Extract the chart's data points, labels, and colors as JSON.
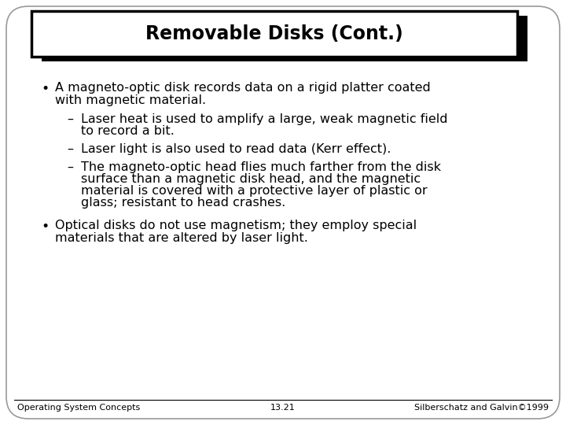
{
  "title": "Removable Disks (Cont.)",
  "background_color": "#ffffff",
  "title_fontsize": 17,
  "body_fontsize": 11.5,
  "footer_fontsize": 8,
  "bullet1_line1": "A magneto-optic disk records data on a rigid platter coated",
  "bullet1_line2": "with magnetic material.",
  "sub1_line1": "Laser heat is used to amplify a large, weak magnetic field",
  "sub1_line2": "to record a bit.",
  "sub2_line1": "Laser light is also used to read data (Kerr effect).",
  "sub3_line1": "The magneto-optic head flies much farther from the disk",
  "sub3_line2": "surface than a magnetic disk head, and the magnetic",
  "sub3_line3": "material is covered with a protective layer of plastic or",
  "sub3_line4": "glass; resistant to head crashes.",
  "bullet2_line1": "Optical disks do not use magnetism; they employ special",
  "bullet2_line2": "materials that are altered by laser light.",
  "footer_left": "Operating System Concepts",
  "footer_center": "13.21",
  "footer_right": "Silberschatz and Galvin©1999"
}
